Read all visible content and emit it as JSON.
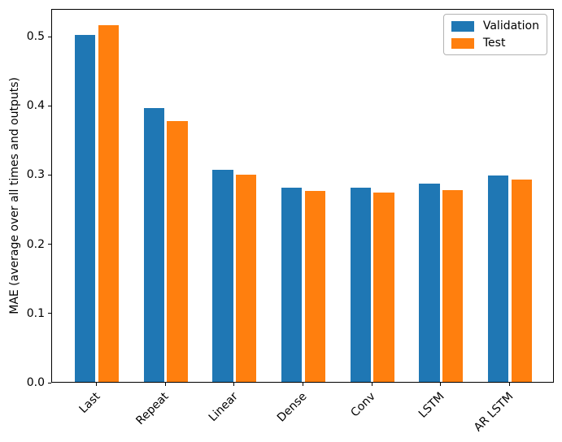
{
  "figure": {
    "background": "#ffffff",
    "axis_color": "#000000"
  },
  "chart_data": {
    "type": "bar",
    "title": "",
    "xlabel": "",
    "ylabel": "MAE (average over all times and outputs)",
    "categories": [
      "Last",
      "Repeat",
      "Linear",
      "Dense",
      "Conv",
      "LSTM",
      "AR LSTM"
    ],
    "series": [
      {
        "name": "Validation",
        "color": "#1f77b4",
        "values": [
          0.501,
          0.396,
          0.306,
          0.28,
          0.28,
          0.286,
          0.298
        ]
      },
      {
        "name": "Test",
        "color": "#ff7f0e",
        "values": [
          0.515,
          0.377,
          0.299,
          0.276,
          0.274,
          0.277,
          0.292
        ]
      }
    ],
    "yticks": [
      0.0,
      0.1,
      0.2,
      0.3,
      0.4,
      0.5
    ],
    "ylim": [
      0,
      0.54
    ],
    "xlim": [
      -0.652,
      6.652
    ],
    "bar_width": 0.3,
    "bar_offset": 0.17,
    "x_label_rotation_deg": 45,
    "grid": false,
    "legend_position": "upper right"
  }
}
